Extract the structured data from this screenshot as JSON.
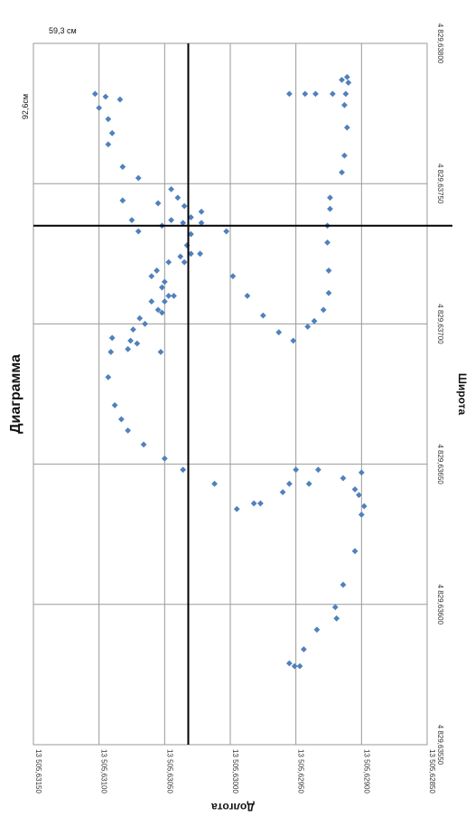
{
  "chart_data": {
    "type": "scatter",
    "title": "Диаграмма",
    "xlabel": "Широта",
    "ylabel": "Долгота",
    "xlim": [
      4829.6355,
      4829.638
    ],
    "ylim": [
      13505.6285,
      13505.6315
    ],
    "x_ticks": [
      "4 829,63550",
      "4 829,63600",
      "4 829,63650",
      "4 829,63700",
      "4 829,63750",
      "4 829,63800"
    ],
    "y_ticks": [
      "13 505,62850",
      "13 505,62900",
      "13 505,62950",
      "13 505,63000",
      "13 505,63050",
      "13 505,63100",
      "13 505,63150"
    ],
    "grid": true,
    "legend": "none",
    "marker_color": "#4f81bd",
    "crosshair": {
      "x": 4829.63735,
      "y": 13505.63032
    },
    "annotations": [
      "59,3 см",
      "92,6см"
    ],
    "points": [
      [
        4829.63579,
        13505.62955
      ],
      [
        4829.63578,
        13505.62951
      ],
      [
        4829.63578,
        13505.62947
      ],
      [
        4829.63584,
        13505.62944
      ],
      [
        4829.63591,
        13505.62934
      ],
      [
        4829.63595,
        13505.62919
      ],
      [
        4829.63599,
        13505.6292
      ],
      [
        4829.63607,
        13505.62914
      ],
      [
        4829.63619,
        13505.62905
      ],
      [
        4829.63632,
        13505.629
      ],
      [
        4829.63635,
        13505.62898
      ],
      [
        4829.63639,
        13505.62902
      ],
      [
        4829.63641,
        13505.62905
      ],
      [
        4829.63645,
        13505.62914
      ],
      [
        4829.63647,
        13505.629
      ],
      [
        4829.63643,
        13505.6294
      ],
      [
        4829.63643,
        13505.62955
      ],
      [
        4829.63648,
        13505.6295
      ],
      [
        4829.63648,
        13505.62933
      ],
      [
        4829.6364,
        13505.6296
      ],
      [
        4829.63636,
        13505.62977
      ],
      [
        4829.63634,
        13505.62995
      ],
      [
        4829.63636,
        13505.62982
      ],
      [
        4829.63643,
        13505.63012
      ],
      [
        4829.63648,
        13505.63036
      ],
      [
        4829.63652,
        13505.6305
      ],
      [
        4829.63657,
        13505.63066
      ],
      [
        4829.63662,
        13505.63078
      ],
      [
        4829.63666,
        13505.63083
      ],
      [
        4829.63671,
        13505.63088
      ],
      [
        4829.63681,
        13505.63093
      ],
      [
        4829.6369,
        13505.63091
      ],
      [
        4829.63695,
        13505.6309
      ],
      [
        4829.63702,
        13505.63069
      ],
      [
        4829.63704,
        13505.63052
      ],
      [
        4829.63708,
        13505.6305
      ],
      [
        4829.6371,
        13505.63043
      ],
      [
        4829.63713,
        13505.63052
      ],
      [
        4829.6371,
        13505.63047
      ],
      [
        4829.63705,
        13505.63055
      ],
      [
        4829.637,
        13505.63065
      ],
      [
        4829.63698,
        13505.63074
      ],
      [
        4829.63691,
        13505.63078
      ],
      [
        4829.63693,
        13505.63071
      ],
      [
        4829.6369,
        13505.63053
      ],
      [
        4829.63694,
        13505.63076
      ],
      [
        4829.63708,
        13505.6306
      ],
      [
        4829.63715,
        13505.6305
      ],
      [
        4829.63717,
        13505.6306
      ],
      [
        4829.63719,
        13505.63056
      ],
      [
        4829.63722,
        13505.63047
      ],
      [
        4829.63724,
        13505.63038
      ],
      [
        4829.63722,
        13505.63035
      ],
      [
        4829.63725,
        13505.6303
      ],
      [
        4829.63728,
        13505.63033
      ],
      [
        4829.63732,
        13505.6303
      ],
      [
        4829.63736,
        13505.63036
      ],
      [
        4829.63738,
        13505.6303
      ],
      [
        4829.63736,
        13505.63022
      ],
      [
        4829.6374,
        13505.63022
      ],
      [
        4829.63742,
        13505.63035
      ],
      [
        4829.63745,
        13505.6304
      ],
      [
        4829.63748,
        13505.63045
      ],
      [
        4829.63743,
        13505.63055
      ],
      [
        4829.63737,
        13505.63045
      ],
      [
        4829.63735,
        13505.63052
      ],
      [
        4829.63733,
        13505.6307
      ],
      [
        4829.63737,
        13505.63075
      ],
      [
        4829.63744,
        13505.63082
      ],
      [
        4829.63752,
        13505.6307
      ],
      [
        4829.63756,
        13505.63082
      ],
      [
        4829.63764,
        13505.63093
      ],
      [
        4829.63768,
        13505.6309
      ],
      [
        4829.63773,
        13505.63093
      ],
      [
        4829.63777,
        13505.631
      ],
      [
        4829.63782,
        13505.63103
      ],
      [
        4829.63781,
        13505.63095
      ],
      [
        4829.6378,
        13505.63084
      ],
      [
        4829.63733,
        13505.63003
      ],
      [
        4829.63725,
        13505.63023
      ],
      [
        4829.63717,
        13505.62998
      ],
      [
        4829.6371,
        13505.62987
      ],
      [
        4829.63703,
        13505.62975
      ],
      [
        4829.63697,
        13505.62963
      ],
      [
        4829.63694,
        13505.62952
      ],
      [
        4829.63699,
        13505.62941
      ],
      [
        4829.63701,
        13505.62936
      ],
      [
        4829.63705,
        13505.62929
      ],
      [
        4829.63711,
        13505.62925
      ],
      [
        4829.63719,
        13505.62925
      ],
      [
        4829.63729,
        13505.62926
      ],
      [
        4829.63735,
        13505.62926
      ],
      [
        4829.63741,
        13505.62924
      ],
      [
        4829.63745,
        13505.62924
      ],
      [
        4829.63754,
        13505.62915
      ],
      [
        4829.6376,
        13505.62913
      ],
      [
        4829.6377,
        13505.62911
      ],
      [
        4829.63778,
        13505.62913
      ],
      [
        4829.63782,
        13505.62912
      ],
      [
        4829.63786,
        13505.6291
      ],
      [
        4829.63788,
        13505.62911
      ],
      [
        4829.63787,
        13505.62915
      ],
      [
        4829.63782,
        13505.62922
      ],
      [
        4829.63782,
        13505.62935
      ],
      [
        4829.63782,
        13505.62955
      ],
      [
        4829.63782,
        13505.62943
      ]
    ]
  }
}
